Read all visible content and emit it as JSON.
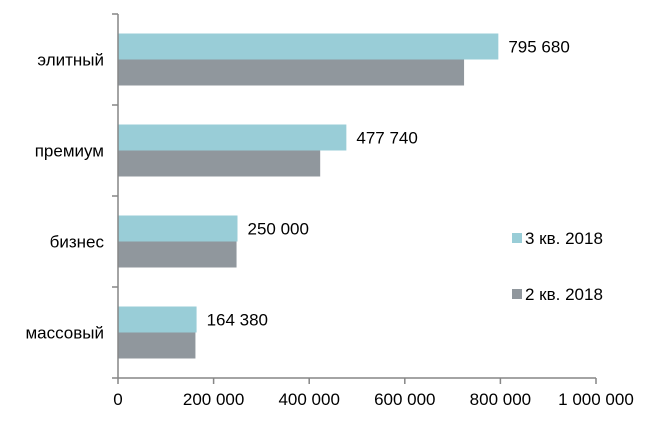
{
  "chart_data": {
    "type": "bar",
    "orientation": "horizontal",
    "title": "",
    "xlabel": "",
    "ylabel": "",
    "categories": [
      "элитный",
      "премиум",
      "бизнес",
      "массовый"
    ],
    "series": [
      {
        "name": "3 кв. 2018",
        "color": "#99CDD7",
        "values": [
          795680,
          477740,
          250000,
          164380
        ],
        "labels": [
          "795 680",
          "477 740",
          "250 000",
          "164 380"
        ]
      },
      {
        "name": "2 кв. 2018",
        "color": "#90979D",
        "values": [
          724000,
          423000,
          248000,
          162000
        ]
      }
    ],
    "xlim": [
      0,
      1000000
    ],
    "xticks": [
      0,
      200000,
      400000,
      600000,
      800000,
      1000000
    ],
    "xtick_labels": [
      "0",
      "200 000",
      "400 000",
      "600 000",
      "800 000",
      "1 000 000"
    ],
    "grid": false,
    "legend": "right",
    "axis_color": "#868686"
  }
}
